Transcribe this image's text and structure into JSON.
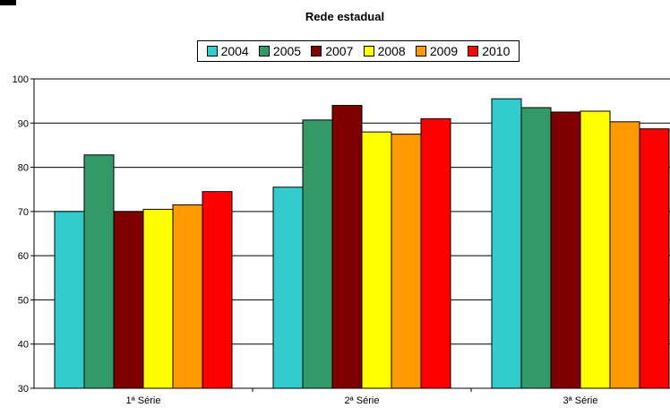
{
  "chart_data": {
    "type": "bar",
    "title": "Rede estadual",
    "categories": [
      "1ª Série",
      "2ª Série",
      "3ª Série"
    ],
    "series": [
      {
        "name": "2004",
        "color": "#33cccc",
        "values": [
          70.0,
          75.5,
          95.5
        ]
      },
      {
        "name": "2005",
        "color": "#339966",
        "values": [
          82.8,
          90.7,
          93.5
        ]
      },
      {
        "name": "2007",
        "color": "#800000",
        "values": [
          70.0,
          94.0,
          92.5
        ]
      },
      {
        "name": "2008",
        "color": "#ffff00",
        "values": [
          70.5,
          88.0,
          92.7
        ]
      },
      {
        "name": "2009",
        "color": "#ff9900",
        "values": [
          71.5,
          87.5,
          90.3
        ]
      },
      {
        "name": "2010",
        "color": "#ff0000",
        "values": [
          74.5,
          91.0,
          88.7
        ]
      }
    ],
    "ylim": [
      30,
      100
    ],
    "yticks": [
      30,
      40,
      50,
      60,
      70,
      80,
      90,
      100
    ],
    "grid": true,
    "legend_position": "top"
  }
}
